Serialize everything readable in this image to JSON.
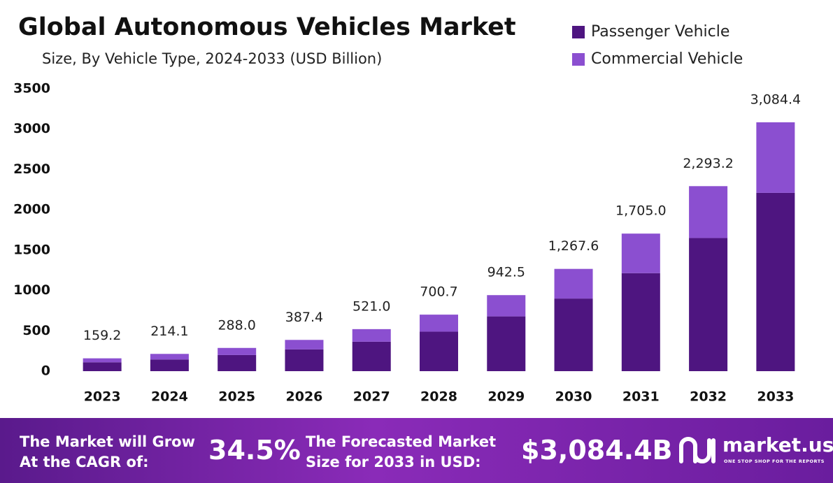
{
  "chart_data": {
    "type": "stacked_bar",
    "title": "Global Autonomous Vehicles Market",
    "subtitle": "Size, By Vehicle Type, 2024-2033 (USD Billion)",
    "categories": [
      "2023",
      "2024",
      "2025",
      "2026",
      "2027",
      "2028",
      "2029",
      "2030",
      "2031",
      "2032",
      "2033"
    ],
    "series": [
      {
        "name": "Passenger Vehicle",
        "color": "#4e1580",
        "values": [
          110,
          145,
          200,
          270,
          365,
          490,
          679,
          900,
          1215,
          1650,
          2210
        ]
      },
      {
        "name": "Commercial Vehicle",
        "color": "#8b4fd0",
        "values": [
          49.2,
          69.1,
          88.0,
          117.4,
          156.0,
          210.7,
          263.5,
          367.6,
          490.0,
          643.2,
          874.4
        ]
      }
    ],
    "totals": [
      159.2,
      214.1,
      288.0,
      387.4,
      521.0,
      700.7,
      942.5,
      1267.6,
      1705.0,
      2293.2,
      3084.4
    ],
    "total_labels": [
      "159.2",
      "214.1",
      "288.0",
      "387.4",
      "521.0",
      "700.7",
      "942.5",
      "1,267.6",
      "1,705.0",
      "2,293.2",
      "3,084.4"
    ],
    "ylim": [
      0,
      3500
    ],
    "yticks": [
      0,
      500,
      1000,
      1500,
      2000,
      2500,
      3000,
      3500
    ],
    "grid": false,
    "legend": "top-right"
  },
  "footer": {
    "cagr_text": [
      "The Market will Grow",
      "At the CAGR of:"
    ],
    "cagr_value": "34.5%",
    "forecast_text": [
      "The Forecasted Market",
      "Size for 2033 in USD:"
    ],
    "forecast_value": "$3,084.4B",
    "brand": "market.us",
    "tagline": "ONE STOP SHOP FOR THE REPORTS"
  }
}
